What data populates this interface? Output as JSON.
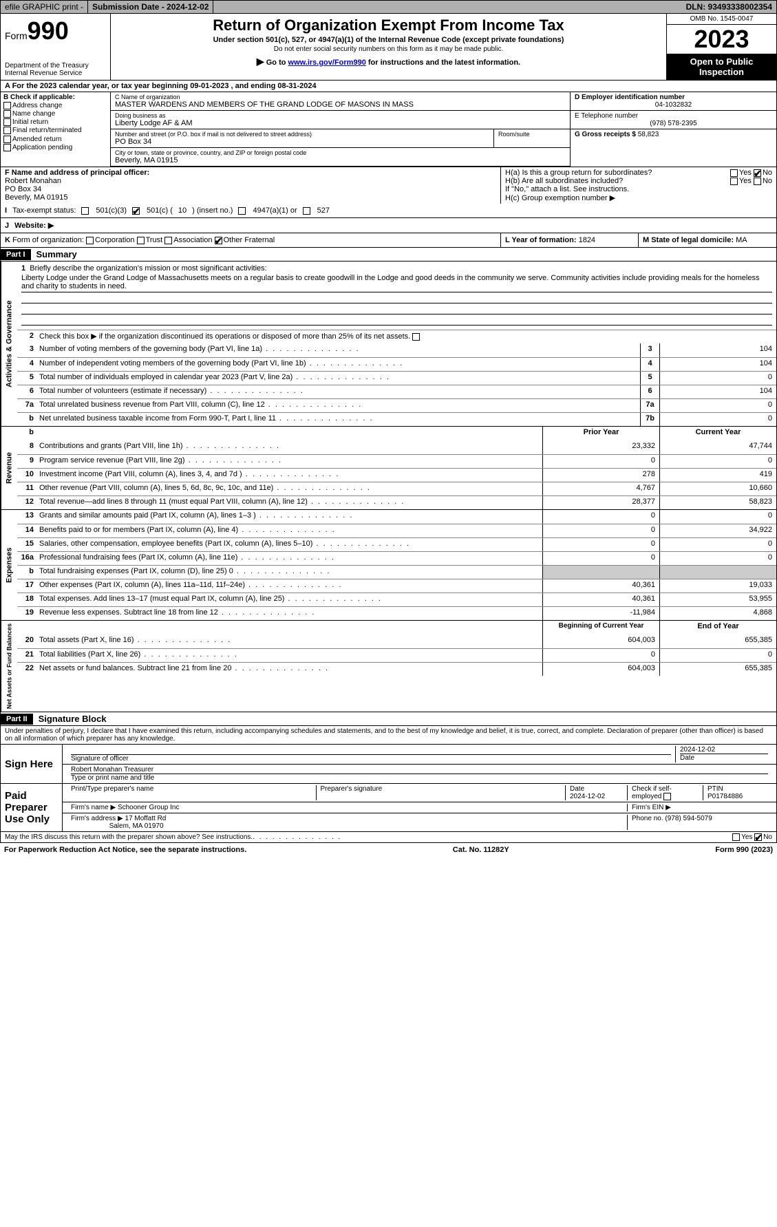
{
  "topbar": {
    "efile": "efile GRAPHIC print -",
    "submission": "Submission Date - 2024-12-02",
    "dln": "DLN: 93493338002354"
  },
  "header": {
    "form_label": "Form",
    "form_num": "990",
    "dept": "Department of the Treasury Internal Revenue Service",
    "title": "Return of Organization Exempt From Income Tax",
    "subtitle": "Under section 501(c), 527, or 4947(a)(1) of the Internal Revenue Code (except private foundations)",
    "ssn_note": "Do not enter social security numbers on this form as it may be made public.",
    "goto_pre": "Go to ",
    "goto_link": "www.irs.gov/Form990",
    "goto_post": " for instructions and the latest information.",
    "omb": "OMB No. 1545-0047",
    "year": "2023",
    "open_public": "Open to Public Inspection"
  },
  "period": "A For the 2023 calendar year, or tax year beginning 09-01-2023   , and ending 08-31-2024",
  "box_b": {
    "hdr": "B Check if applicable:",
    "opts": [
      "Address change",
      "Name change",
      "Initial return",
      "Final return/terminated",
      "Amended return",
      "Application pending"
    ]
  },
  "box_c": {
    "name_label": "C Name of organization",
    "name": "MASTER WARDENS AND MEMBERS OF THE GRAND LODGE OF MASONS IN MASS",
    "dba_label": "Doing business as",
    "dba": "Liberty Lodge AF & AM",
    "street_label": "Number and street (or P.O. box if mail is not delivered to street address)",
    "street": "PO Box 34",
    "room_label": "Room/suite",
    "city_label": "City or town, state or province, country, and ZIP or foreign postal code",
    "city": "Beverly, MA  01915"
  },
  "box_d": {
    "label": "D Employer identification number",
    "val": "04-1032832"
  },
  "box_e": {
    "label": "E Telephone number",
    "val": "(978) 578-2395"
  },
  "box_g": {
    "label": "G Gross receipts $",
    "val": "58,823"
  },
  "box_f": {
    "label": "F  Name and address of principal officer:",
    "name": "Robert Monahan",
    "street": "PO Box 34",
    "city": "Beverly, MA  01915"
  },
  "box_h": {
    "a_label": "H(a)  Is this a group return for subordinates?",
    "b_label": "H(b)  Are all subordinates included?",
    "note": "If \"No,\" attach a list. See instructions.",
    "c_label": "H(c)  Group exemption number  ▶"
  },
  "tax_status": {
    "label_i": "I",
    "label": "Tax-exempt status:",
    "o1": "501(c)(3)",
    "o2_pre": "501(c) (",
    "o2_num": "10",
    "o2_post": ") (insert no.)",
    "o3": "4947(a)(1) or",
    "o4": "527"
  },
  "website": {
    "j": "J",
    "label": "Website:  ▶"
  },
  "korg": {
    "k": "K",
    "label": "Form of organization:",
    "opts": [
      "Corporation",
      "Trust",
      "Association",
      "Other"
    ],
    "other_val": "Fraternal",
    "l_label": "L Year of formation:",
    "l_val": "1824",
    "m_label": "M State of legal domicile:",
    "m_val": "MA"
  },
  "part1": {
    "hdr": "Part I",
    "title": "Summary",
    "line1_label": "Briefly describe the organization's mission or most significant activities:",
    "mission": "Liberty Lodge under the Grand Lodge of Massachusetts meets on a regular basis to create goodwill in the Lodge and good deeds in the community we serve. Community activities include providing meals for the homeless and charity to students in need.",
    "line2": "Check this box ▶        if the organization discontinued its operations or disposed of more than 25% of its net assets.",
    "lines_gov": [
      {
        "n": "3",
        "d": "Number of voting members of the governing body (Part VI, line 1a)",
        "bl": "3",
        "v": "104"
      },
      {
        "n": "4",
        "d": "Number of independent voting members of the governing body (Part VI, line 1b)",
        "bl": "4",
        "v": "104"
      },
      {
        "n": "5",
        "d": "Total number of individuals employed in calendar year 2023 (Part V, line 2a)",
        "bl": "5",
        "v": "0"
      },
      {
        "n": "6",
        "d": "Total number of volunteers (estimate if necessary)",
        "bl": "6",
        "v": "104"
      },
      {
        "n": "7a",
        "d": "Total unrelated business revenue from Part VIII, column (C), line 12",
        "bl": "7a",
        "v": "0"
      },
      {
        "n": "b",
        "d": "Net unrelated business taxable income from Form 990-T, Part I, line 11",
        "bl": "7b",
        "v": "0"
      }
    ],
    "col_hdr_prior": "Prior Year",
    "col_hdr_current": "Current Year",
    "revenue": [
      {
        "n": "8",
        "d": "Contributions and grants (Part VIII, line 1h)",
        "p": "23,332",
        "c": "47,744"
      },
      {
        "n": "9",
        "d": "Program service revenue (Part VIII, line 2g)",
        "p": "0",
        "c": "0"
      },
      {
        "n": "10",
        "d": "Investment income (Part VIII, column (A), lines 3, 4, and 7d )",
        "p": "278",
        "c": "419"
      },
      {
        "n": "11",
        "d": "Other revenue (Part VIII, column (A), lines 5, 6d, 8c, 9c, 10c, and 11e)",
        "p": "4,767",
        "c": "10,660"
      },
      {
        "n": "12",
        "d": "Total revenue—add lines 8 through 11 (must equal Part VIII, column (A), line 12)",
        "p": "28,377",
        "c": "58,823"
      }
    ],
    "expenses": [
      {
        "n": "13",
        "d": "Grants and similar amounts paid (Part IX, column (A), lines 1–3 )",
        "p": "0",
        "c": "0"
      },
      {
        "n": "14",
        "d": "Benefits paid to or for members (Part IX, column (A), line 4)",
        "p": "0",
        "c": "34,922"
      },
      {
        "n": "15",
        "d": "Salaries, other compensation, employee benefits (Part IX, column (A), lines 5–10)",
        "p": "0",
        "c": "0"
      },
      {
        "n": "16a",
        "d": "Professional fundraising fees (Part IX, column (A), line 11e)",
        "p": "0",
        "c": "0"
      },
      {
        "n": "b",
        "d": "Total fundraising expenses (Part IX, column (D), line 25) 0",
        "p": "grey",
        "c": "grey"
      },
      {
        "n": "17",
        "d": "Other expenses (Part IX, column (A), lines 11a–11d, 11f–24e)",
        "p": "40,361",
        "c": "19,033"
      },
      {
        "n": "18",
        "d": "Total expenses. Add lines 13–17 (must equal Part IX, column (A), line 25)",
        "p": "40,361",
        "c": "53,955"
      },
      {
        "n": "19",
        "d": "Revenue less expenses. Subtract line 18 from line 12",
        "p": "-11,984",
        "c": "4,868"
      }
    ],
    "col_hdr_boy": "Beginning of Current Year",
    "col_hdr_eoy": "End of Year",
    "netassets": [
      {
        "n": "20",
        "d": "Total assets (Part X, line 16)",
        "p": "604,003",
        "c": "655,385"
      },
      {
        "n": "21",
        "d": "Total liabilities (Part X, line 26)",
        "p": "0",
        "c": "0"
      },
      {
        "n": "22",
        "d": "Net assets or fund balances. Subtract line 21 from line 20",
        "p": "604,003",
        "c": "655,385"
      }
    ],
    "side_gov": "Activities & Governance",
    "side_rev": "Revenue",
    "side_exp": "Expenses",
    "side_net": "Net Assets or Fund Balances"
  },
  "part2": {
    "hdr": "Part II",
    "title": "Signature Block",
    "intro": "Under penalties of perjury, I declare that I have examined this return, including accompanying schedules and statements, and to the best of my knowledge and belief, it is true, correct, and complete. Declaration of preparer (other than officer) is based on all information of which preparer has any knowledge.",
    "sign_here": "Sign Here",
    "sig_officer": "Signature of officer",
    "officer_name": "Robert Monahan  Treasurer",
    "type_name": "Type or print name and title",
    "date1": "2024-12-02",
    "date_label": "Date",
    "paid_prep": "Paid Preparer Use Only",
    "prep_name_label": "Print/Type preparer's name",
    "prep_sig_label": "Preparer's signature",
    "prep_date": "2024-12-02",
    "check_self": "Check         if self-employed",
    "ptin_label": "PTIN",
    "ptin": "P01784886",
    "firm_name_label": "Firm's name      ▶",
    "firm_name": "Schooner Group Inc",
    "firm_ein_label": "Firm's EIN ▶",
    "firm_addr_label": "Firm's address ▶",
    "firm_addr1": "17 Moffatt Rd",
    "firm_addr2": "Salem, MA  01970",
    "phone_label": "Phone no.",
    "phone": "(978) 594-5079",
    "discuss": "May the IRS discuss this return with the preparer shown above? See instructions.",
    "yes": "Yes",
    "no": "No"
  },
  "footer": {
    "pra": "For Paperwork Reduction Act Notice, see the separate instructions.",
    "cat": "Cat. No. 11282Y",
    "form": "Form 990 (2023)"
  }
}
